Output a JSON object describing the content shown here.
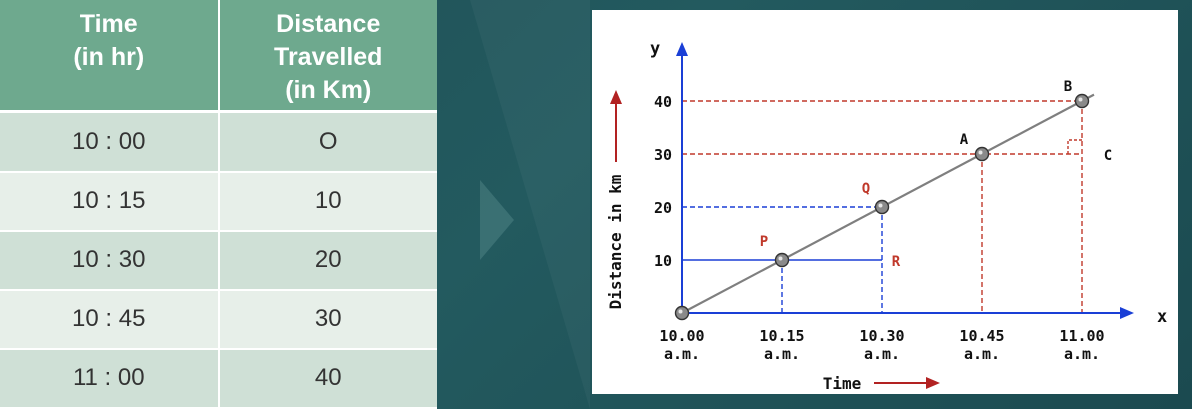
{
  "table": {
    "headers": [
      [
        "Time",
        "(in hr)"
      ],
      [
        "Distance",
        "Travelled",
        "(in Km)"
      ]
    ],
    "rows": [
      [
        "10 : 00",
        "O"
      ],
      [
        "10 : 15",
        "10"
      ],
      [
        "10 : 30",
        "20"
      ],
      [
        "10 : 45",
        "30"
      ],
      [
        "11 : 00",
        "40"
      ]
    ]
  },
  "chart_data": {
    "type": "line",
    "xlabel": "Time",
    "ylabel": "Distance in km",
    "axis_x_letter": "x",
    "axis_y_letter": "y",
    "x_ticks": [
      [
        "10.00",
        "a.m."
      ],
      [
        "10.15",
        "a.m."
      ],
      [
        "10.30",
        "a.m."
      ],
      [
        "10.45",
        "a.m."
      ],
      [
        "11.00",
        "a.m."
      ]
    ],
    "y_ticks": [
      "10",
      "20",
      "30",
      "40"
    ],
    "x": [
      "10.00 a.m.",
      "10.15 a.m.",
      "10.30 a.m.",
      "10.45 a.m.",
      "11.00 a.m."
    ],
    "y": [
      0,
      10,
      20,
      30,
      40
    ],
    "ylim": [
      0,
      40
    ],
    "point_labels": [
      {
        "label": "P",
        "x": "10.15 a.m.",
        "y": 10,
        "color": "#c0392b"
      },
      {
        "label": "Q",
        "x": "10.30 a.m.",
        "y": 20,
        "color": "#c0392b"
      },
      {
        "label": "R",
        "x": "10.30 a.m.",
        "y": 10,
        "color": "#c0392b"
      },
      {
        "label": "A",
        "x": "10.45 a.m.",
        "y": 30,
        "color": "#111111"
      },
      {
        "label": "B",
        "x": "11.00 a.m.",
        "y": 40,
        "color": "#111111"
      },
      {
        "label": "C",
        "x": "11.00 a.m.",
        "y": 30,
        "color": "#111111"
      }
    ],
    "colors": {
      "axis": "#1a3fd6",
      "line": "#7f7f7f",
      "red_guides": "#c0392b",
      "blue_guides": "#1a3fd6",
      "arrow": "#b22222"
    }
  }
}
